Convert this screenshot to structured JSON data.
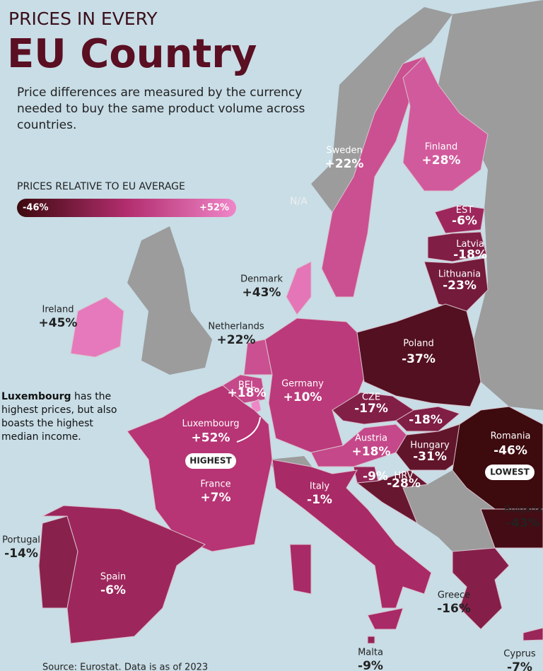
{
  "header": {
    "title_line1": "PRICES IN EVERY",
    "title_line2": "EU Country",
    "subtitle": "Price differences are measured by the currency needed to buy the same product volume across countries."
  },
  "legend": {
    "title": "PRICES RELATIVE TO EU AVERAGE",
    "min": {
      "value": -46,
      "label": "-46%"
    },
    "max": {
      "value": 52,
      "label": "+52%"
    },
    "colors": [
      "#3d0a0e",
      "#b22d6e",
      "#ef86c8"
    ]
  },
  "na_label": "N/A",
  "annotation": {
    "bold": "Luxembourg",
    "text": "has the highest prices, but also boasts the highest median income."
  },
  "badges": {
    "highest": "HIGHEST",
    "lowest": "LOWEST"
  },
  "countries": [
    {
      "name": "Sweden",
      "value": 22,
      "label": "+22%"
    },
    {
      "name": "Finland",
      "value": 28,
      "label": "+28%"
    },
    {
      "name": "EST",
      "value": -6,
      "label": "-6%"
    },
    {
      "name": "Latvia",
      "value": -18,
      "label": "-18%"
    },
    {
      "name": "Lithuania",
      "value": -23,
      "label": "-23%"
    },
    {
      "name": "Denmark",
      "value": 43,
      "label": "+43%"
    },
    {
      "name": "Ireland",
      "value": 45,
      "label": "+45%"
    },
    {
      "name": "Netherlands",
      "value": 22,
      "label": "+22%"
    },
    {
      "name": "BEL",
      "value": 18,
      "label": "+18%"
    },
    {
      "name": "Germany",
      "value": 10,
      "label": "+10%"
    },
    {
      "name": "Poland",
      "value": -37,
      "label": "-37%"
    },
    {
      "name": "CZE",
      "value": -17,
      "label": "-17%"
    },
    {
      "name": null,
      "value": -18,
      "label": "-18%"
    },
    {
      "name": "Austria",
      "value": 18,
      "label": "+18%"
    },
    {
      "name": "Hungary",
      "value": -31,
      "label": "-31%"
    },
    {
      "name": "Romania",
      "value": -46,
      "label": "-46%"
    },
    {
      "name": "Luxembourg",
      "value": 52,
      "label": "+52%"
    },
    {
      "name": "France",
      "value": 7,
      "label": "+7%"
    },
    {
      "name": null,
      "value": -9,
      "label": "-9%"
    },
    {
      "name": "HRV",
      "value": -28,
      "label": "-28%"
    },
    {
      "name": "Italy",
      "value": -1,
      "label": "-1%"
    },
    {
      "name": "Bulgaria",
      "value": -43,
      "label": "-43%"
    },
    {
      "name": "Portugal",
      "value": -14,
      "label": "-14%"
    },
    {
      "name": "Spain",
      "value": -6,
      "label": "-6%"
    },
    {
      "name": "Greece",
      "value": -16,
      "label": "-16%"
    },
    {
      "name": "Malta",
      "value": -9,
      "label": "-9%"
    },
    {
      "name": "Cyprus",
      "value": -7,
      "label": "-7%"
    }
  ],
  "source": "Source: Eurostat. Data is as of 2023"
}
